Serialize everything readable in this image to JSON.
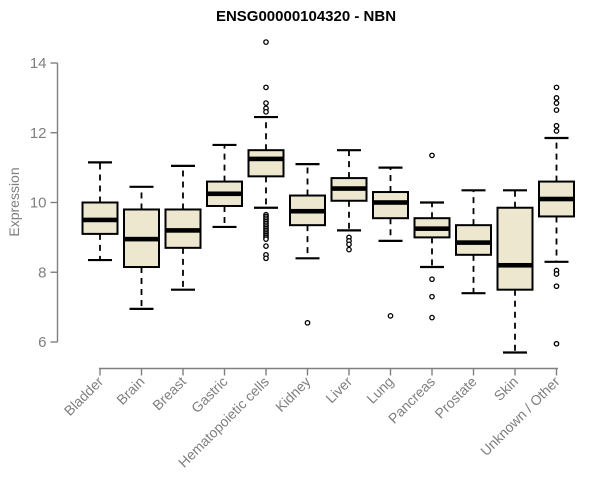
{
  "chart_data": {
    "type": "boxplot",
    "title": "ENSG00000104320 - NBN",
    "xlabel": "",
    "ylabel": "Expression",
    "ylim": [
      5.5,
      14.75
    ],
    "yticks": [
      6,
      8,
      10,
      12,
      14
    ],
    "grid": false,
    "legend": "none",
    "categories": [
      "Bladder",
      "Brain",
      "Breast",
      "Gastric",
      "Hematopoietic cells",
      "Kidney",
      "Liver",
      "Lung",
      "Pancreas",
      "Prostate",
      "Skin",
      "Unknown / Other"
    ],
    "series": [
      {
        "name": "Bladder",
        "whisker_low": 8.35,
        "q1": 9.1,
        "median": 9.5,
        "q3": 10.0,
        "whisker_high": 11.15,
        "outliers": []
      },
      {
        "name": "Brain",
        "whisker_low": 6.95,
        "q1": 8.15,
        "median": 8.95,
        "q3": 9.8,
        "whisker_high": 10.45,
        "outliers": []
      },
      {
        "name": "Breast",
        "whisker_low": 7.5,
        "q1": 8.7,
        "median": 9.2,
        "q3": 9.8,
        "whisker_high": 11.05,
        "outliers": []
      },
      {
        "name": "Gastric",
        "whisker_low": 9.3,
        "q1": 9.9,
        "median": 10.25,
        "q3": 10.6,
        "whisker_high": 11.65,
        "outliers": []
      },
      {
        "name": "Hematopoietic cells",
        "whisker_low": 9.85,
        "q1": 10.75,
        "median": 11.25,
        "q3": 11.5,
        "whisker_high": 12.45,
        "outliers": [
          14.6,
          13.3,
          12.85,
          12.7,
          12.6,
          9.65,
          9.6,
          9.55,
          9.5,
          9.45,
          9.4,
          9.35,
          9.3,
          9.25,
          9.2,
          9.15,
          9.1,
          9.05,
          9.0,
          8.95,
          8.75,
          8.5,
          8.4
        ]
      },
      {
        "name": "Kidney",
        "whisker_low": 8.4,
        "q1": 9.35,
        "median": 9.75,
        "q3": 10.2,
        "whisker_high": 11.1,
        "outliers": [
          6.55
        ]
      },
      {
        "name": "Liver",
        "whisker_low": 9.2,
        "q1": 10.05,
        "median": 10.4,
        "q3": 10.7,
        "whisker_high": 11.5,
        "outliers": [
          9.0,
          8.9,
          8.8,
          8.65
        ]
      },
      {
        "name": "Lung",
        "whisker_low": 8.9,
        "q1": 9.55,
        "median": 10.0,
        "q3": 10.3,
        "whisker_high": 11.0,
        "outliers": [
          6.75
        ]
      },
      {
        "name": "Pancreas",
        "whisker_low": 8.15,
        "q1": 9.0,
        "median": 9.25,
        "q3": 9.55,
        "whisker_high": 10.0,
        "outliers": [
          11.35,
          7.8,
          7.3,
          6.7
        ]
      },
      {
        "name": "Prostate",
        "whisker_low": 7.4,
        "q1": 8.5,
        "median": 8.85,
        "q3": 9.35,
        "whisker_high": 10.35,
        "outliers": []
      },
      {
        "name": "Skin",
        "whisker_low": 5.7,
        "q1": 7.5,
        "median": 8.2,
        "q3": 9.85,
        "whisker_high": 10.35,
        "outliers": []
      },
      {
        "name": "Unknown / Other",
        "whisker_low": 8.3,
        "q1": 9.6,
        "median": 10.1,
        "q3": 10.6,
        "whisker_high": 11.85,
        "outliers": [
          13.3,
          13.0,
          12.85,
          12.65,
          12.2,
          12.05,
          8.05,
          7.95,
          7.6,
          5.95
        ]
      }
    ],
    "colors": {
      "box_fill": "#EDE7CF",
      "box_border": "#000000",
      "median": "#000000",
      "whisker": "#000000",
      "outlier_stroke": "#000000",
      "outlier_fill": "#FFFFFF",
      "axis": "#7F7F7F",
      "tick_label": "#7F7F7F",
      "title": "#000000",
      "background": "#FFFFFF"
    }
  }
}
